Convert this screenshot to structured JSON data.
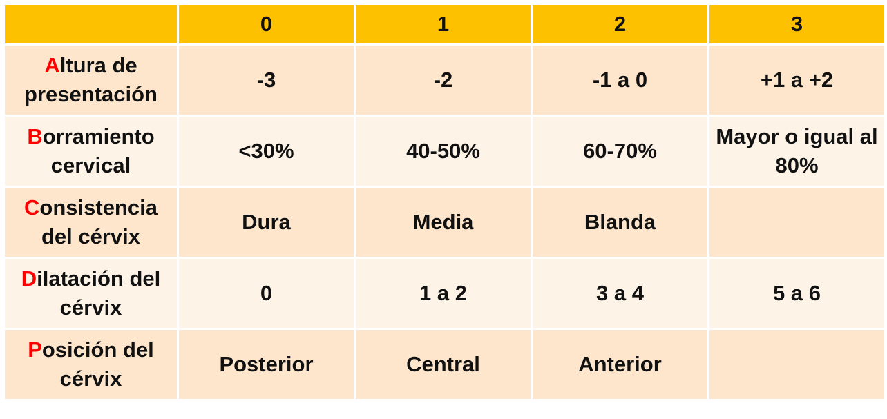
{
  "header": {
    "corner": "",
    "columns": [
      "0",
      "1",
      "2",
      "3"
    ]
  },
  "rows": [
    {
      "initial": "A",
      "label_rest_line1": "ltura de",
      "label_line2": "presentación",
      "cells": [
        "-3",
        "-2",
        "-1 a 0",
        "+1 a +2"
      ]
    },
    {
      "initial": "B",
      "label_rest_line1": "orramiento",
      "label_line2": "cervical",
      "cells": [
        "<30%",
        "40-50%",
        "60-70%",
        "Mayor o igual al 80%"
      ]
    },
    {
      "initial": "C",
      "label_rest_line1": "onsistencia",
      "label_line2": "del cérvix",
      "cells": [
        "Dura",
        "Media",
        "Blanda",
        ""
      ]
    },
    {
      "initial": "D",
      "label_rest_line1": "ilatación del",
      "label_line2": "cérvix",
      "cells": [
        "0",
        "1 a 2",
        "3 a 4",
        "5 a 6"
      ]
    },
    {
      "initial": "P",
      "label_rest_line1": "osición del",
      "label_line2": "cérvix",
      "cells": [
        "Posterior",
        "Central",
        "Anterior",
        ""
      ]
    }
  ],
  "colors": {
    "header_bg": "#fdc100",
    "row_odd_bg": "#fde6cb",
    "row_even_bg": "#fef3e7",
    "initial_color": "#ff0000"
  }
}
